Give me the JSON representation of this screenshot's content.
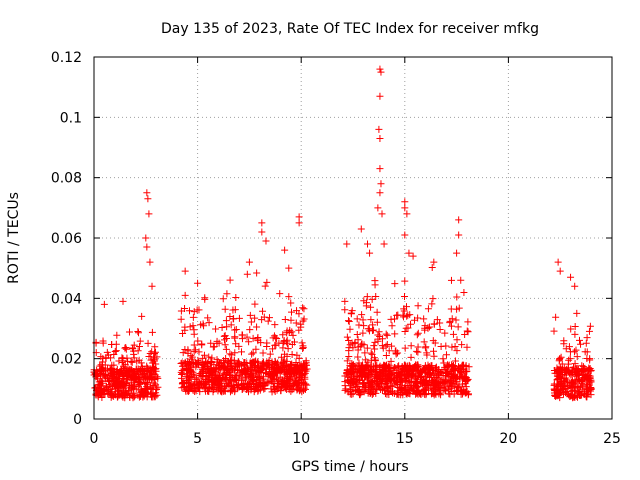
{
  "chart_data": {
    "type": "scatter",
    "title": "Day 135 of 2023, Rate Of TEC Index for receiver mfkg",
    "xlabel": "GPS time / hours",
    "ylabel": "ROTI / TECUs",
    "xlim": [
      0,
      25
    ],
    "ylim": [
      0,
      0.12
    ],
    "xticks": [
      0,
      5,
      10,
      15,
      20,
      25
    ],
    "yticks": [
      0,
      0.02,
      0.04,
      0.06,
      0.08,
      0.1,
      0.12
    ],
    "xtick_labels": [
      "0",
      "5",
      "10",
      "15",
      "20",
      "25"
    ],
    "ytick_labels": [
      "0",
      "0.02",
      "0.04",
      "0.06",
      "0.08",
      "0.1",
      "0.12"
    ],
    "grid": true,
    "marker": "plus",
    "color": "#ff0000",
    "series": [
      {
        "segments": [
          {
            "start": 0.0,
            "end": 3.1,
            "base": 0.012,
            "spread": 0.018
          },
          {
            "start": 4.2,
            "end": 10.3,
            "base": 0.014,
            "spread": 0.032
          },
          {
            "start": 12.1,
            "end": 18.1,
            "base": 0.013,
            "spread": 0.038
          },
          {
            "start": 22.2,
            "end": 24.0,
            "base": 0.012,
            "spread": 0.028
          }
        ],
        "peaks": [
          {
            "x": 0.5,
            "y": 0.038
          },
          {
            "x": 1.4,
            "y": 0.039
          },
          {
            "x": 2.3,
            "y": 0.034
          },
          {
            "x": 2.55,
            "y": 0.075
          },
          {
            "x": 2.6,
            "y": 0.073
          },
          {
            "x": 2.65,
            "y": 0.068
          },
          {
            "x": 2.5,
            "y": 0.06
          },
          {
            "x": 2.55,
            "y": 0.057
          },
          {
            "x": 2.7,
            "y": 0.052
          },
          {
            "x": 2.8,
            "y": 0.044
          },
          {
            "x": 4.4,
            "y": 0.049
          },
          {
            "x": 4.4,
            "y": 0.041
          },
          {
            "x": 5.0,
            "y": 0.045
          },
          {
            "x": 7.4,
            "y": 0.048
          },
          {
            "x": 7.5,
            "y": 0.052
          },
          {
            "x": 8.1,
            "y": 0.065
          },
          {
            "x": 8.1,
            "y": 0.062
          },
          {
            "x": 8.3,
            "y": 0.059
          },
          {
            "x": 9.2,
            "y": 0.056
          },
          {
            "x": 9.4,
            "y": 0.05
          },
          {
            "x": 9.9,
            "y": 0.067
          },
          {
            "x": 9.9,
            "y": 0.065
          },
          {
            "x": 12.2,
            "y": 0.058
          },
          {
            "x": 12.9,
            "y": 0.063
          },
          {
            "x": 13.2,
            "y": 0.058
          },
          {
            "x": 13.3,
            "y": 0.055
          },
          {
            "x": 13.8,
            "y": 0.116
          },
          {
            "x": 13.85,
            "y": 0.115
          },
          {
            "x": 13.8,
            "y": 0.107
          },
          {
            "x": 13.75,
            "y": 0.096
          },
          {
            "x": 13.8,
            "y": 0.093
          },
          {
            "x": 13.8,
            "y": 0.083
          },
          {
            "x": 13.85,
            "y": 0.078
          },
          {
            "x": 13.8,
            "y": 0.075
          },
          {
            "x": 13.7,
            "y": 0.07
          },
          {
            "x": 13.9,
            "y": 0.068
          },
          {
            "x": 14.0,
            "y": 0.058
          },
          {
            "x": 15.0,
            "y": 0.072
          },
          {
            "x": 15.0,
            "y": 0.07
          },
          {
            "x": 15.1,
            "y": 0.068
          },
          {
            "x": 15.0,
            "y": 0.061
          },
          {
            "x": 15.2,
            "y": 0.055
          },
          {
            "x": 15.4,
            "y": 0.054
          },
          {
            "x": 16.4,
            "y": 0.052
          },
          {
            "x": 17.6,
            "y": 0.066
          },
          {
            "x": 17.6,
            "y": 0.061
          },
          {
            "x": 17.5,
            "y": 0.055
          },
          {
            "x": 17.7,
            "y": 0.046
          },
          {
            "x": 22.4,
            "y": 0.052
          },
          {
            "x": 22.5,
            "y": 0.049
          },
          {
            "x": 23.0,
            "y": 0.047
          },
          {
            "x": 23.2,
            "y": 0.044
          },
          {
            "x": 23.3,
            "y": 0.035
          }
        ]
      }
    ]
  }
}
